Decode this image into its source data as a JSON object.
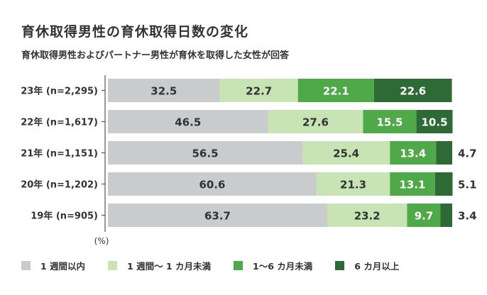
{
  "title": "育休取得男性の育休取得日数の変化",
  "subtitle": "育休取得男性およびパートナー男性が育休を取得した女性が回答",
  "chart_data": {
    "type": "bar",
    "orientation": "horizontal",
    "stacked": true,
    "percent_label": "(%)",
    "categories": [
      "23年 (n=2,295)",
      "22年 (n=1,617)",
      "21年 (n=1,151)",
      "20年 (n=1,202)",
      "19年 (n=905)"
    ],
    "series": [
      {
        "name": "1 週間以内",
        "color": "#c9cbcc",
        "values": [
          32.5,
          46.5,
          56.5,
          60.6,
          63.7
        ]
      },
      {
        "name": "1 週間～ 1 カ月未満",
        "color": "#c8e3b4",
        "values": [
          22.7,
          27.6,
          25.4,
          21.3,
          23.2
        ]
      },
      {
        "name": "1～6 カ月未満",
        "color": "#4fa948",
        "values": [
          22.1,
          15.5,
          13.4,
          13.1,
          9.7
        ]
      },
      {
        "name": "6 カ月以上",
        "color": "#2e6a35",
        "values": [
          22.6,
          10.5,
          4.7,
          5.1,
          3.4
        ]
      }
    ],
    "xlim": [
      0,
      100
    ],
    "legend_position": "bottom"
  }
}
